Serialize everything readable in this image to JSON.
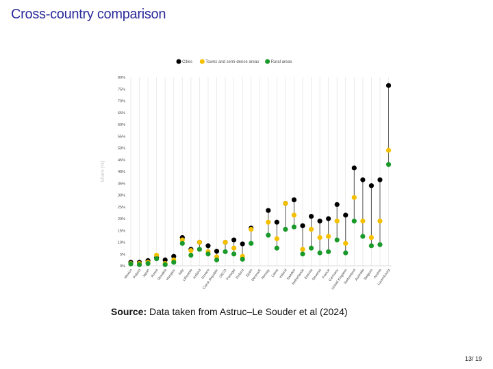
{
  "slide": {
    "title": "Cross-country comparison",
    "source_label": "Source:",
    "source_text": "Data taken from Astruc–Le Souder et al (2024)",
    "page_number": "13/ 19"
  },
  "colors": {
    "title": "#2b2b9a",
    "cities": "#000000",
    "towns": "#f5c000",
    "rural": "#1a9a2a",
    "connector": "#555555",
    "grid": "#e6e6e6"
  },
  "chart_data": {
    "type": "scatter",
    "ylabel": "Share (%)",
    "xlabel": "",
    "ylim": [
      0,
      80
    ],
    "ytick_step": 5,
    "grid": "vertical",
    "legend_position": "top-center",
    "categories": [
      "Mexico",
      "Poland",
      "Japan",
      "Korea",
      "Slovakia",
      "Hungary",
      "Italy",
      "Lithuania",
      "Iceland",
      "Greece",
      "Czech Republic",
      "OECD",
      "Portugal",
      "Finland",
      "Spain",
      "Denmark",
      "Norway",
      "Latvia",
      "Ireland",
      "Sweden",
      "Netherlands",
      "Estonia",
      "Slovenia",
      "France",
      "Germany",
      "United Kingdom",
      "Switzerland",
      "Australia",
      "Belgium",
      "Austria",
      "Luxembourg"
    ],
    "series": [
      {
        "name": "Cities",
        "values": [
          1.5,
          1.5,
          2.2,
          3.5,
          2.5,
          4.0,
          12.0,
          7.0,
          10.0,
          8.5,
          6.2,
          10.0,
          11.0,
          9.3,
          16.0,
          null,
          23.5,
          18.5,
          26.5,
          28.0,
          17.0,
          21.0,
          19.0,
          20.0,
          26.0,
          21.5,
          41.5,
          36.5,
          34.0,
          36.5,
          76.5
        ]
      },
      {
        "name": "Towns and semi-dense areas",
        "values": [
          1.0,
          1.0,
          1.5,
          4.5,
          1.0,
          2.5,
          11.0,
          6.5,
          10.0,
          6.0,
          3.8,
          10.0,
          7.5,
          4.0,
          15.5,
          null,
          18.5,
          11.5,
          26.5,
          21.5,
          7.0,
          15.5,
          12.0,
          12.5,
          19.0,
          9.5,
          29.0,
          19.0,
          12.0,
          19.0,
          49.0
        ]
      },
      {
        "name": "Rural areas",
        "values": [
          0.8,
          0.5,
          1.0,
          3.0,
          0.5,
          1.5,
          9.5,
          4.5,
          7.0,
          5.0,
          2.5,
          6.0,
          5.0,
          2.8,
          9.5,
          null,
          13.0,
          7.5,
          15.5,
          16.5,
          5.0,
          7.5,
          5.5,
          6.0,
          11.0,
          5.5,
          19.0,
          12.5,
          8.5,
          9.0,
          43.0
        ]
      }
    ]
  }
}
